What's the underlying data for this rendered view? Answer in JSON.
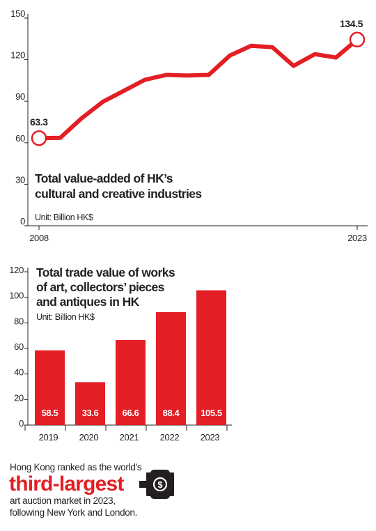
{
  "colors": {
    "accent": "#e31e24",
    "text": "#231f20",
    "axis": "#231f20"
  },
  "chart_data": [
    {
      "type": "line",
      "title": "Total value-added of HK’s",
      "title_line2": "cultural and creative industries",
      "unit": "Unit: Billion HK$",
      "x": [
        2008,
        2009,
        2010,
        2011,
        2012,
        2013,
        2014,
        2015,
        2016,
        2017,
        2018,
        2019,
        2020,
        2021,
        2022,
        2023
      ],
      "values": [
        63.3,
        63.5,
        77.5,
        89.5,
        97.5,
        105.5,
        109,
        108.5,
        109,
        123,
        130,
        129,
        115.5,
        124,
        121.5,
        134.5
      ],
      "xlim": [
        2008,
        2023
      ],
      "ylim": [
        0,
        150
      ],
      "yticks": [
        "0",
        "30",
        "60",
        "90",
        "120",
        "150"
      ],
      "xtick_labels": [
        "2008",
        "2023"
      ],
      "start_label": "63.3",
      "end_label": "134.5"
    },
    {
      "type": "bar",
      "title_lines": [
        "Total trade value of works",
        "of art, collectors’ pieces",
        "and antiques in HK"
      ],
      "unit": "Unit: Billion HK$",
      "categories": [
        "2019",
        "2020",
        "2021",
        "2022",
        "2023"
      ],
      "values": [
        58.5,
        33.6,
        66.6,
        88.4,
        105.5
      ],
      "value_labels": [
        "58.5",
        "33.6",
        "66.6",
        "88.4",
        "105.5"
      ],
      "ylim": [
        0,
        120
      ],
      "yticks": [
        "0",
        "20",
        "40",
        "60",
        "80",
        "100",
        "120"
      ]
    }
  ],
  "footer": {
    "line1": "Hong Kong ranked as the world’s",
    "highlight": "third-largest",
    "line3": "art auction market in 2023,",
    "line4": "following New York and London."
  }
}
